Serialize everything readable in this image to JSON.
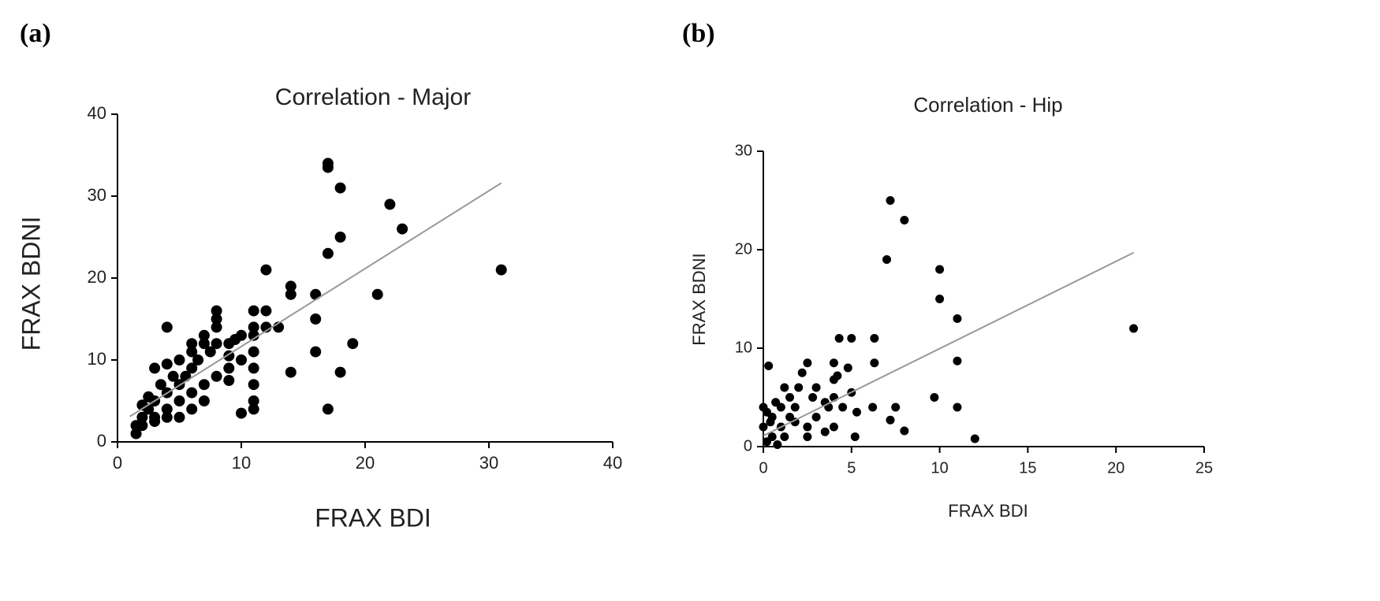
{
  "chart_data": [
    {
      "type": "scatter",
      "panel_label": "(a)",
      "title": "Correlation - Major",
      "xlabel": "FRAX BDI",
      "ylabel": "FRAX BDNI",
      "color": "#000000",
      "x": [
        17,
        17,
        18,
        22,
        23,
        18,
        17,
        31,
        21,
        16,
        14,
        14,
        12,
        17,
        18,
        19,
        16,
        16,
        14,
        11,
        11,
        11,
        11,
        11,
        11,
        11,
        11,
        12,
        12,
        13,
        10,
        9,
        8,
        8,
        8,
        7,
        7,
        6,
        6,
        5,
        4,
        4,
        3,
        9,
        8,
        7,
        6,
        5,
        5,
        4,
        4,
        3,
        3,
        2.5,
        2,
        2,
        1.5,
        1.5,
        2,
        3,
        4,
        5,
        6,
        7,
        10,
        9,
        10,
        8,
        6,
        9.5,
        3.5,
        4.5,
        5.5,
        2.5,
        6.5,
        7.5,
        9
      ],
      "values": [
        34,
        33.5,
        31,
        29,
        26,
        25,
        23,
        21,
        18,
        18,
        19,
        18,
        21,
        4,
        8.5,
        12,
        15,
        11,
        8.5,
        16,
        14,
        13,
        11,
        9,
        7,
        5,
        4,
        16,
        14,
        14,
        13,
        12,
        16,
        15,
        14,
        13,
        12,
        11,
        9,
        10,
        14,
        9.5,
        9,
        7.5,
        8,
        7,
        6,
        5,
        7,
        6,
        4,
        5,
        3,
        4,
        3,
        2,
        1,
        2,
        4.5,
        2.5,
        3,
        3,
        4,
        5,
        3.5,
        9,
        10,
        12,
        12,
        12.5,
        7,
        8,
        8,
        5.5,
        10,
        11,
        10.5
      ],
      "fit_line": {
        "x": [
          1,
          31
        ],
        "y": [
          3.1,
          31.6
        ]
      },
      "fit_color": "#999999",
      "xlim": [
        0,
        40
      ],
      "xticks": [
        0,
        10,
        20,
        30,
        40
      ],
      "ylim": [
        0,
        40
      ],
      "yticks": [
        0,
        10,
        20,
        30,
        40
      ]
    },
    {
      "type": "scatter",
      "panel_label": "(b)",
      "title": "Correlation - Hip",
      "xlabel": "FRAX BDI",
      "ylabel": "FRAX BDNI",
      "color": "#000000",
      "x": [
        7.2,
        8,
        7,
        10,
        10,
        11,
        21,
        11,
        11,
        9.7,
        12,
        7.5,
        7.2,
        8,
        6.3,
        6.3,
        6.2,
        4.3,
        5,
        4,
        4.8,
        4.2,
        4,
        5,
        5.3,
        5.2,
        4.5,
        4,
        3.5,
        3,
        3,
        2.5,
        2.2,
        2,
        1.8,
        1.5,
        1.5,
        1,
        1,
        0.5,
        0.5,
        0.3,
        0.2,
        0.2,
        0.8,
        1.2,
        2.5,
        2.5,
        3.5,
        0,
        0,
        0.7,
        1.2,
        2.8,
        3.7,
        4,
        1.8,
        0.4
      ],
      "values": [
        25,
        23,
        19,
        18,
        15,
        13,
        12,
        8.7,
        4,
        5,
        0.8,
        4,
        2.7,
        1.6,
        11,
        8.5,
        4,
        11,
        11,
        8.5,
        8,
        7.2,
        6.8,
        5.5,
        3.5,
        1,
        4,
        2,
        4.5,
        6,
        3,
        8.5,
        7.5,
        6,
        4,
        5,
        3,
        4,
        2,
        3,
        1,
        8.2,
        3.5,
        0.5,
        0.2,
        1,
        1,
        2,
        1.5,
        2,
        4,
        4.5,
        6,
        5,
        4,
        5,
        2.5,
        2.5
      ],
      "fit_line": {
        "x": [
          0,
          21
        ],
        "y": [
          1.1,
          19.7
        ]
      },
      "fit_color": "#999999",
      "xlim": [
        0,
        25
      ],
      "xticks": [
        0,
        5,
        10,
        15,
        20,
        25
      ],
      "ylim": [
        0,
        30
      ],
      "yticks": [
        0,
        10,
        20,
        30
      ]
    }
  ]
}
